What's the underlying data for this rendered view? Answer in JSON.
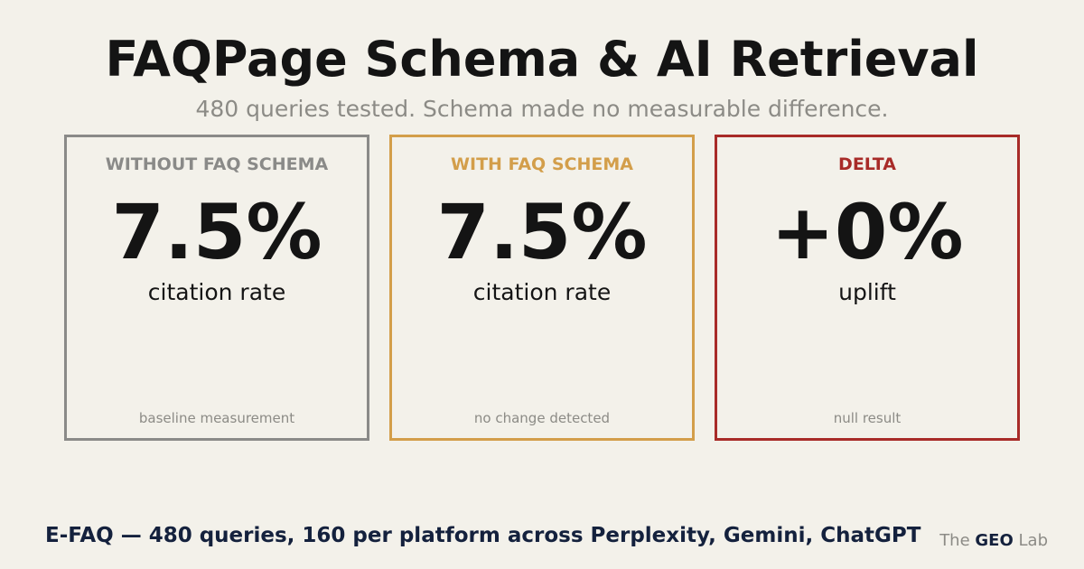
{
  "header": {
    "title": "FAQPage Schema & AI Retrieval",
    "subtitle": "480 queries tested. Schema made no measurable difference."
  },
  "cards": [
    {
      "label": "WITHOUT FAQ SCHEMA",
      "value": "7.5%",
      "unit": "citation rate",
      "note": "baseline measurement"
    },
    {
      "label": "WITH FAQ SCHEMA",
      "value": "7.5%",
      "unit": "citation rate",
      "note": "no change detected"
    },
    {
      "label": "DELTA",
      "value": "+0%",
      "unit": "uplift",
      "note": "null result"
    }
  ],
  "footer": {
    "text": "E-FAQ — 480 queries, 160 per platform across Perplexity, Gemini, ChatGPT",
    "brand": [
      "The",
      "GEO",
      "Lab"
    ]
  }
}
